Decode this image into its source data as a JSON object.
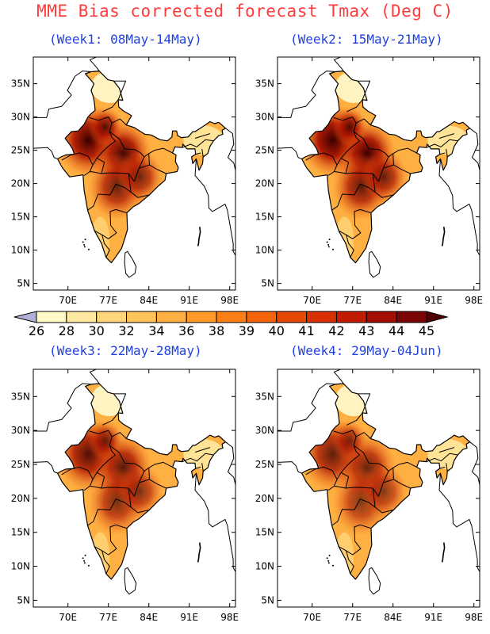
{
  "title": "MME Bias corrected forecast Tmax (Deg C)",
  "panels": [
    {
      "subtitle": "(Week1: 08May-14May)",
      "intensity": 1.0
    },
    {
      "subtitle": "(Week2: 15May-21May)",
      "intensity": 1.05
    },
    {
      "subtitle": "(Week3: 22May-28May)",
      "intensity": 0.9
    },
    {
      "subtitle": "(Week4: 29May-04Jun)",
      "intensity": 0.82
    }
  ],
  "map": {
    "lon_range": [
      64,
      99
    ],
    "lat_range": [
      4,
      39
    ],
    "lon_ticks": [
      "70E",
      "77E",
      "84E",
      "91E",
      "98E"
    ],
    "lon_tick_values": [
      70,
      77,
      84,
      91,
      98
    ],
    "lat_ticks": [
      "5N",
      "10N",
      "15N",
      "20N",
      "25N",
      "30N",
      "35N"
    ],
    "lat_tick_values": [
      5,
      10,
      15,
      20,
      25,
      30,
      35
    ]
  },
  "colorbar": {
    "levels": [
      "26",
      "28",
      "30",
      "32",
      "34",
      "36",
      "38",
      "39",
      "40",
      "41",
      "42",
      "43",
      "44",
      "45"
    ],
    "colors": [
      "#b0b0d8",
      "#fff8c8",
      "#ffe9a0",
      "#ffd77a",
      "#ffc45c",
      "#ffb043",
      "#ff9a2a",
      "#fb8017",
      "#f2650a",
      "#e44a05",
      "#d83003",
      "#c41c02",
      "#a20e02",
      "#7a0402",
      "#4f0000"
    ]
  },
  "chart_data": {
    "type": "heatmap",
    "title": "MME Bias corrected forecast Tmax (Deg C)",
    "units": "Deg C",
    "weeks": [
      "Week1: 08May-14May",
      "Week2: 15May-21May",
      "Week3: 22May-28May",
      "Week4: 29May-04Jun"
    ],
    "x_range": [
      64,
      99
    ],
    "y_range": [
      4,
      39
    ],
    "levels": [
      26,
      28,
      30,
      32,
      34,
      36,
      38,
      39,
      40,
      41,
      42,
      43,
      44,
      45
    ],
    "hotspots": [
      {
        "lon": 73.5,
        "lat": 26.5,
        "value": 44
      },
      {
        "lon": 79.5,
        "lat": 23.5,
        "value": 43
      },
      {
        "lon": 78.5,
        "lat": 18.0,
        "value": 41
      },
      {
        "lon": 84.0,
        "lat": 21.0,
        "value": 40
      }
    ]
  }
}
